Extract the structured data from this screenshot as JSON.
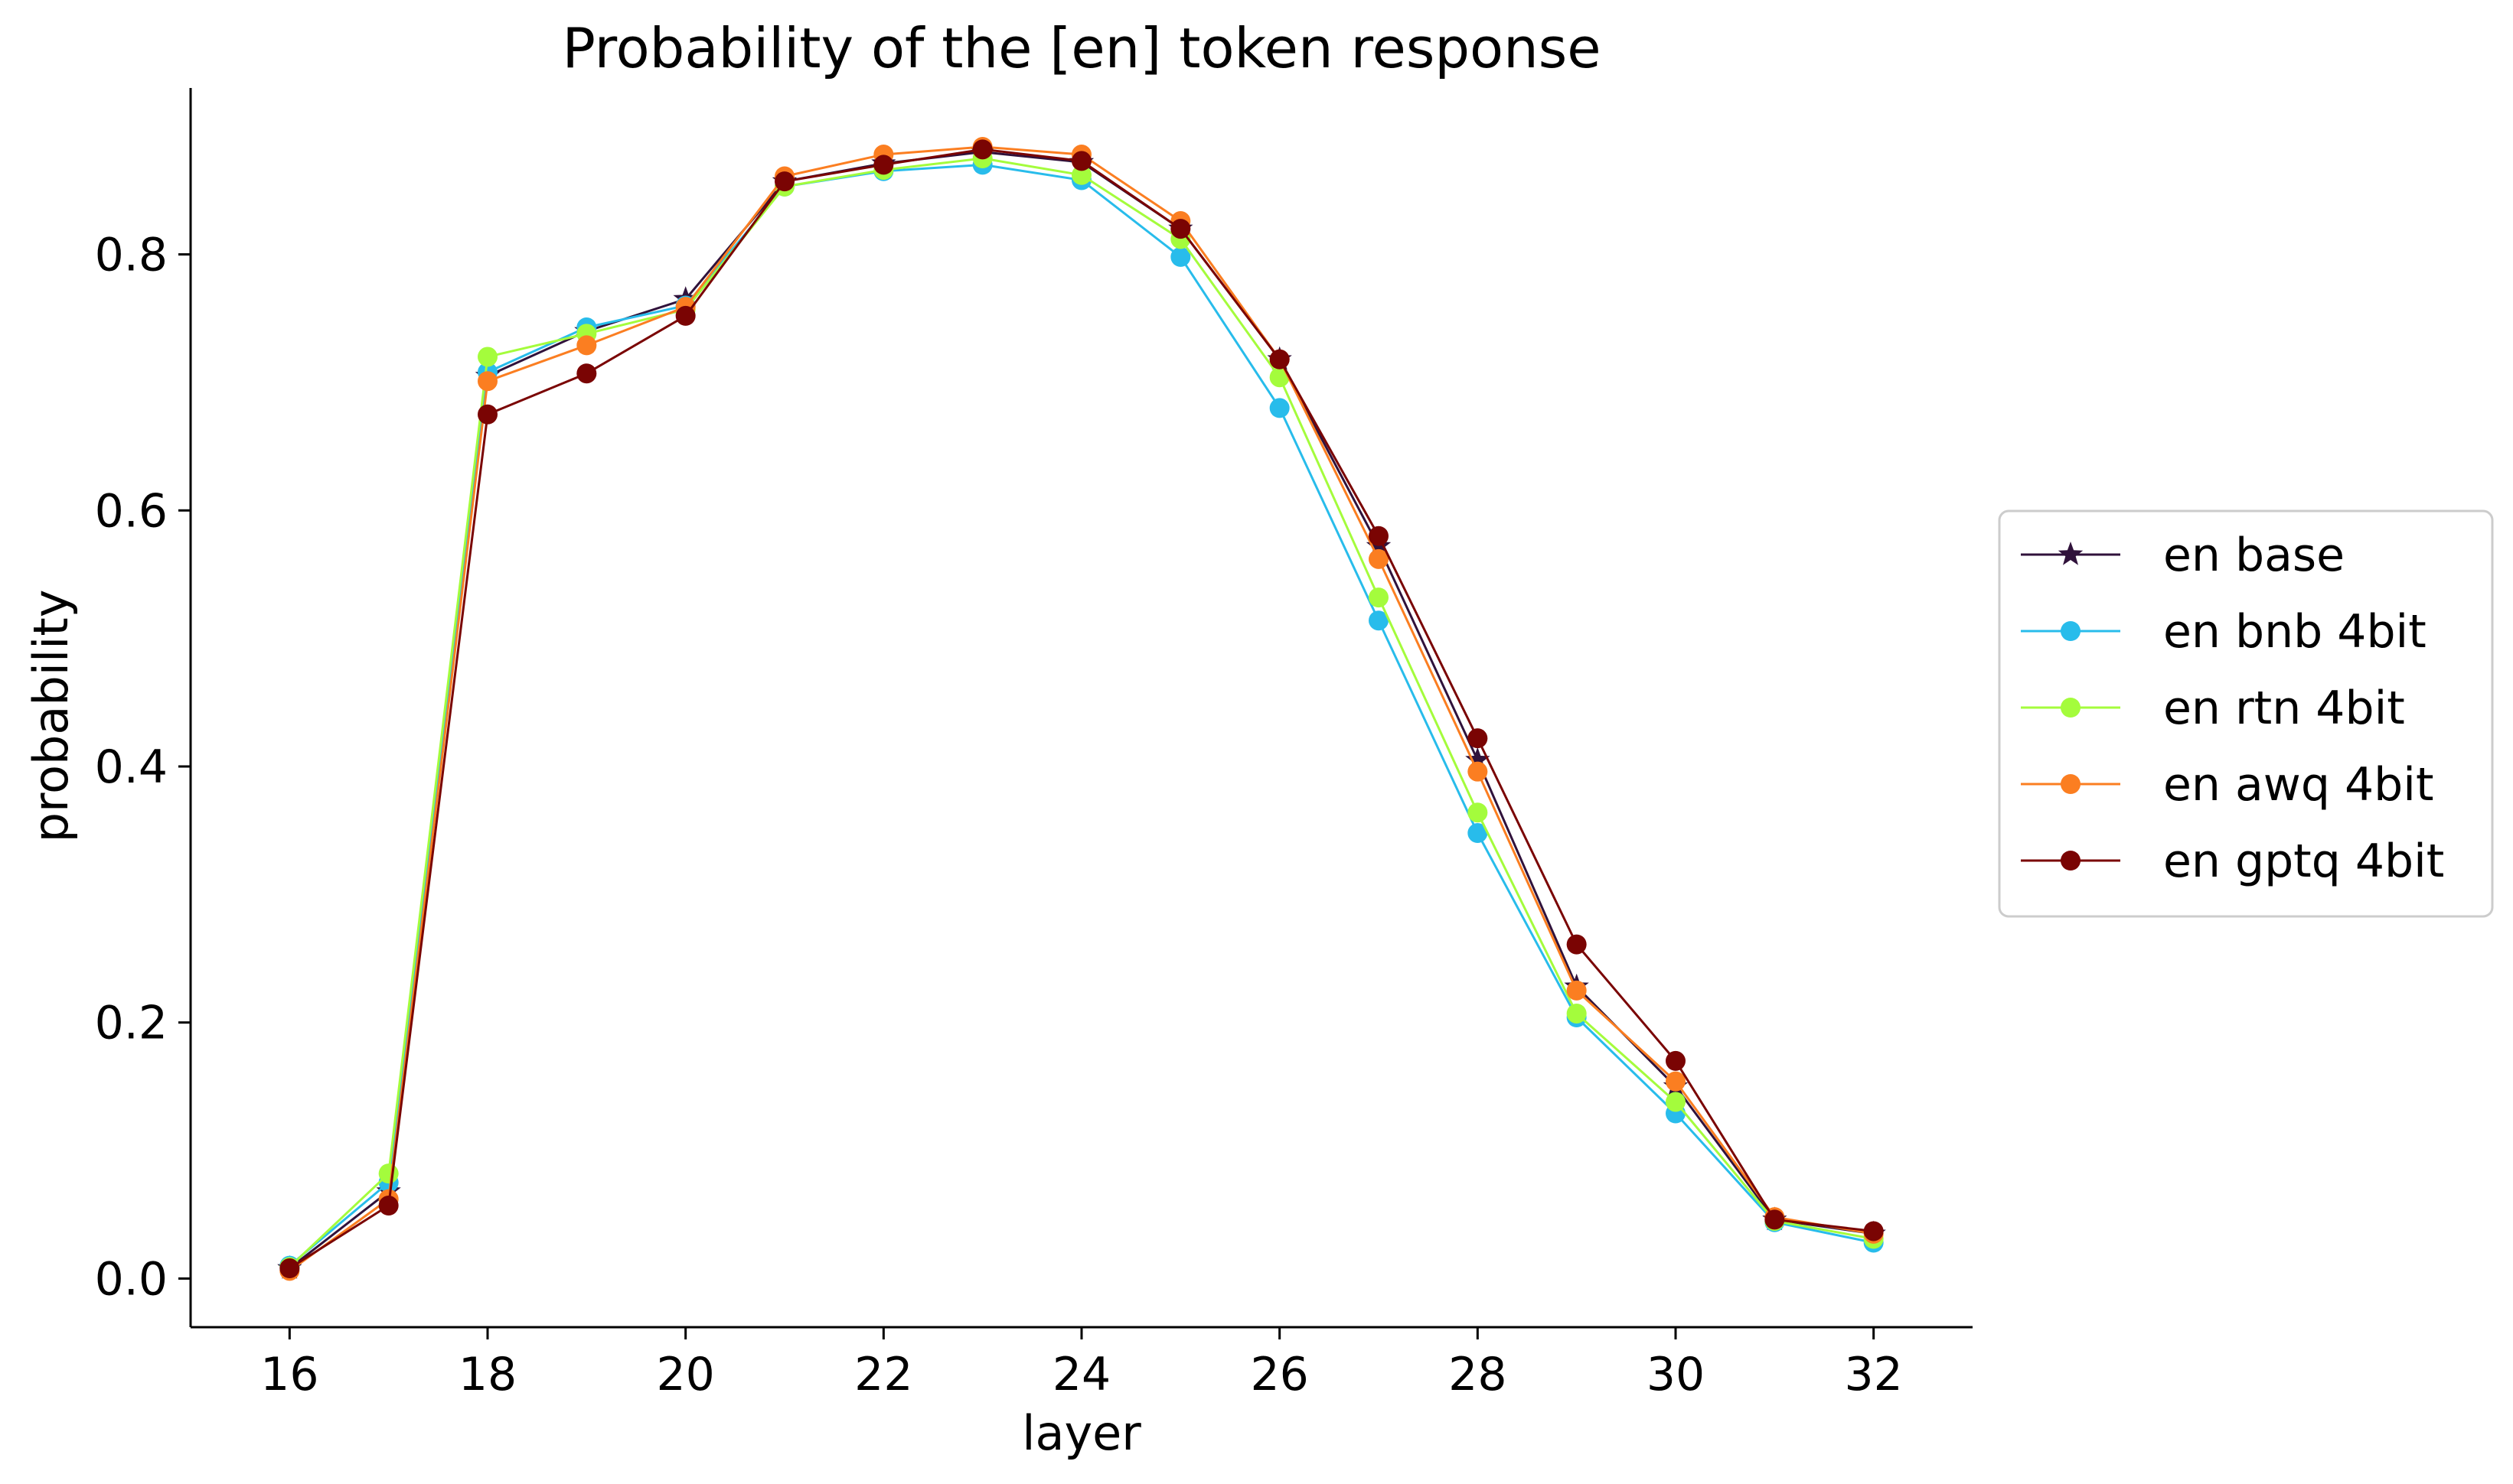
{
  "chart_data": {
    "type": "line",
    "title": "Probability of the [en] token response",
    "xlabel": "layer",
    "ylabel": "probability",
    "xlim": [
      15,
      33
    ],
    "ylim": [
      -0.038,
      0.93
    ],
    "xticks": [
      16,
      18,
      20,
      22,
      24,
      26,
      28,
      30,
      32
    ],
    "yticks": [
      0.0,
      0.2,
      0.4,
      0.6,
      0.8
    ],
    "grid": false,
    "legend_position": "center-right-outside",
    "x": [
      16,
      17,
      18,
      19,
      20,
      21,
      22,
      23,
      24,
      25,
      26,
      27,
      28,
      29,
      30,
      31,
      32
    ],
    "series": [
      {
        "name": "en base",
        "color": "#30123b",
        "marker": "star",
        "values": [
          0.008,
          0.068,
          0.705,
          0.74,
          0.765,
          0.857,
          0.871,
          0.88,
          0.872,
          0.82,
          0.718,
          0.572,
          0.405,
          0.228,
          0.15,
          0.046,
          0.035
        ]
      },
      {
        "name": "en bnb 4bit",
        "color": "#28bceb",
        "marker": "circle",
        "values": [
          0.01,
          0.075,
          0.708,
          0.743,
          0.76,
          0.853,
          0.865,
          0.87,
          0.858,
          0.798,
          0.68,
          0.514,
          0.348,
          0.204,
          0.129,
          0.044,
          0.028
        ]
      },
      {
        "name": "en rtn 4bit",
        "color": "#a4fc3c",
        "marker": "circle",
        "values": [
          0.009,
          0.082,
          0.72,
          0.738,
          0.757,
          0.853,
          0.866,
          0.875,
          0.862,
          0.812,
          0.704,
          0.532,
          0.364,
          0.207,
          0.138,
          0.045,
          0.031
        ]
      },
      {
        "name": "en awq 4bit",
        "color": "#fb7e21",
        "marker": "circle",
        "values": [
          0.006,
          0.062,
          0.701,
          0.729,
          0.759,
          0.861,
          0.878,
          0.884,
          0.878,
          0.826,
          0.718,
          0.562,
          0.396,
          0.225,
          0.154,
          0.048,
          0.035
        ]
      },
      {
        "name": "en gptq 4bit",
        "color": "#7a0403",
        "marker": "circle",
        "values": [
          0.008,
          0.057,
          0.675,
          0.707,
          0.752,
          0.857,
          0.87,
          0.882,
          0.873,
          0.82,
          0.718,
          0.58,
          0.422,
          0.261,
          0.17,
          0.046,
          0.037
        ]
      }
    ]
  }
}
